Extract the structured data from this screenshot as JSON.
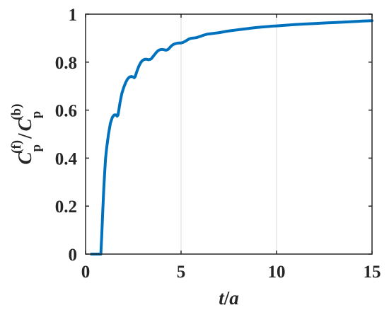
{
  "chart_data": {
    "type": "line",
    "title": "",
    "xlabel": {
      "var": "t",
      "sep": "/",
      "denom": "a"
    },
    "ylabel": {
      "num_sym": "C",
      "num_sub": "p",
      "num_sup": "(f)",
      "sep": "/",
      "den_sym": "C",
      "den_sub": "p",
      "den_sup": "(b)"
    },
    "xlim": [
      0,
      15
    ],
    "ylim": [
      0,
      1
    ],
    "xticks": [
      0,
      5,
      10,
      15
    ],
    "yticks": [
      0,
      0.2,
      0.4,
      0.6,
      0.8,
      1
    ],
    "xtick_labels": [
      "0",
      "5",
      "10",
      "15"
    ],
    "ytick_labels": [
      "0",
      "0.2",
      "0.4",
      "0.6",
      "0.8",
      "1"
    ],
    "grid": "x-major",
    "line_color": "#0072BD",
    "series": [
      {
        "x": [
          0.3,
          0.8,
          0.85,
          0.9,
          0.95,
          1.0,
          1.05,
          1.1,
          1.2,
          1.3,
          1.4,
          1.5,
          1.6,
          1.65,
          1.7,
          1.8,
          1.9,
          2.0,
          2.1,
          2.2,
          2.3,
          2.4,
          2.5,
          2.55,
          2.6,
          2.7,
          2.8,
          2.9,
          3.0,
          3.1,
          3.2,
          3.3,
          3.4,
          3.45,
          3.5,
          3.6,
          3.7,
          3.8,
          3.9,
          4.0,
          4.1,
          4.2,
          4.3,
          4.35,
          4.4,
          4.5,
          4.6,
          4.7,
          4.8,
          4.9,
          5.0,
          5.1,
          5.2,
          5.3,
          5.4,
          5.5,
          5.6,
          5.8,
          6.0,
          6.2,
          6.4,
          6.6,
          6.8,
          7.0,
          7.2,
          7.4,
          7.6,
          7.8,
          8.0,
          8.3,
          8.6,
          8.9,
          9.2,
          9.5,
          9.8,
          10.0,
          10.5,
          11.0,
          11.5,
          12.0,
          12.5,
          13.0,
          13.5,
          14.0,
          14.5,
          15.0
        ],
        "y": [
          0,
          0,
          0.08,
          0.18,
          0.27,
          0.34,
          0.4,
          0.44,
          0.5,
          0.545,
          0.57,
          0.58,
          0.58,
          0.575,
          0.58,
          0.63,
          0.67,
          0.695,
          0.715,
          0.73,
          0.738,
          0.74,
          0.738,
          0.735,
          0.74,
          0.765,
          0.785,
          0.8,
          0.808,
          0.812,
          0.812,
          0.81,
          0.812,
          0.815,
          0.82,
          0.83,
          0.84,
          0.848,
          0.852,
          0.853,
          0.852,
          0.85,
          0.852,
          0.855,
          0.86,
          0.868,
          0.874,
          0.877,
          0.879,
          0.88,
          0.88,
          0.882,
          0.886,
          0.891,
          0.896,
          0.899,
          0.9,
          0.902,
          0.907,
          0.913,
          0.917,
          0.919,
          0.921,
          0.923,
          0.926,
          0.929,
          0.931,
          0.933,
          0.935,
          0.938,
          0.941,
          0.944,
          0.946,
          0.948,
          0.95,
          0.951,
          0.954,
          0.957,
          0.959,
          0.961,
          0.963,
          0.965,
          0.967,
          0.969,
          0.971,
          0.973
        ]
      }
    ]
  }
}
